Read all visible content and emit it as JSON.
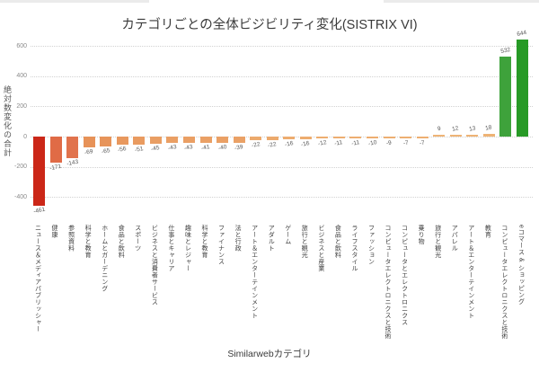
{
  "page": {
    "title": "カテゴリごとの全体ビジビリティ変化(SISTRIX VI)",
    "x_axis_title": "Similarwebカテゴリ",
    "y_axis_title": "絶対数変化の合計"
  },
  "chart_data": {
    "type": "bar",
    "title": "カテゴリごとの全体ビジビリティ変化(SISTRIX VI)",
    "xlabel": "Similarwebカテゴリ",
    "ylabel": "絶対数変化の合計",
    "ylim": [
      -500,
      700
    ],
    "yticks": [
      600,
      400,
      200,
      0,
      -200,
      -400
    ],
    "grid": "horizontal-dotted",
    "legend_position": "none",
    "value_labels_shown": true,
    "categories": [
      "ニュース＆メディアパブリッシャー",
      "健康",
      "参照資料",
      "科学と教育",
      "ホームとガーデニング",
      "食品と飲料",
      "スポーツ",
      "ビジネスと消費者サービス",
      "仕事とキャリア",
      "趣味とレジャー",
      "科学と教育",
      "ファイナンス",
      "法と行政",
      "アート＆エンターテインメント",
      "アダルト",
      "ゲーム",
      "旅行と観光",
      "ビジネスと産業",
      "食品と飲料",
      "ライフスタイル",
      "ファッション",
      "コンピュータエレクトロニクスと技術",
      "コンピュータとエレクトロニクス",
      "乗り物",
      "旅行と観光",
      "アパレル",
      "アート＆エンターテインメント",
      "教育",
      "コンピュータエレクトロニクスと技術",
      "eコマース & ショッピング"
    ],
    "values": [
      -461,
      -171,
      -143,
      -69,
      -65,
      -56,
      -51,
      -45,
      -43,
      -43,
      -41,
      -40,
      -39,
      -22,
      -22,
      -16,
      -16,
      -12,
      -11,
      -11,
      -10,
      -9,
      -7,
      -7,
      9,
      12,
      13,
      18,
      532,
      644
    ],
    "bar_colors": [
      "#cb2718",
      "#e06b46",
      "#e1734d",
      "#e79258",
      "#e7945a",
      "#e8985e",
      "#e99b60",
      "#e99e63",
      "#ea9f64",
      "#ea9f64",
      "#eaa065",
      "#eaa065",
      "#eaa166",
      "#ecaa6d",
      "#ecaa6d",
      "#edac6f",
      "#edac6f",
      "#edae70",
      "#edae71",
      "#edae71",
      "#edae71",
      "#edaf72",
      "#edaf72",
      "#edaf72",
      "#eeb476",
      "#eeb476",
      "#eeb375",
      "#eeb375",
      "#3ea23b",
      "#279a26"
    ],
    "colors_meaning": {
      "strong_negative": "#cb2718",
      "mild_negative": "#eaa065",
      "near_zero": "#eeb476",
      "strong_positive": "#279a26"
    }
  }
}
